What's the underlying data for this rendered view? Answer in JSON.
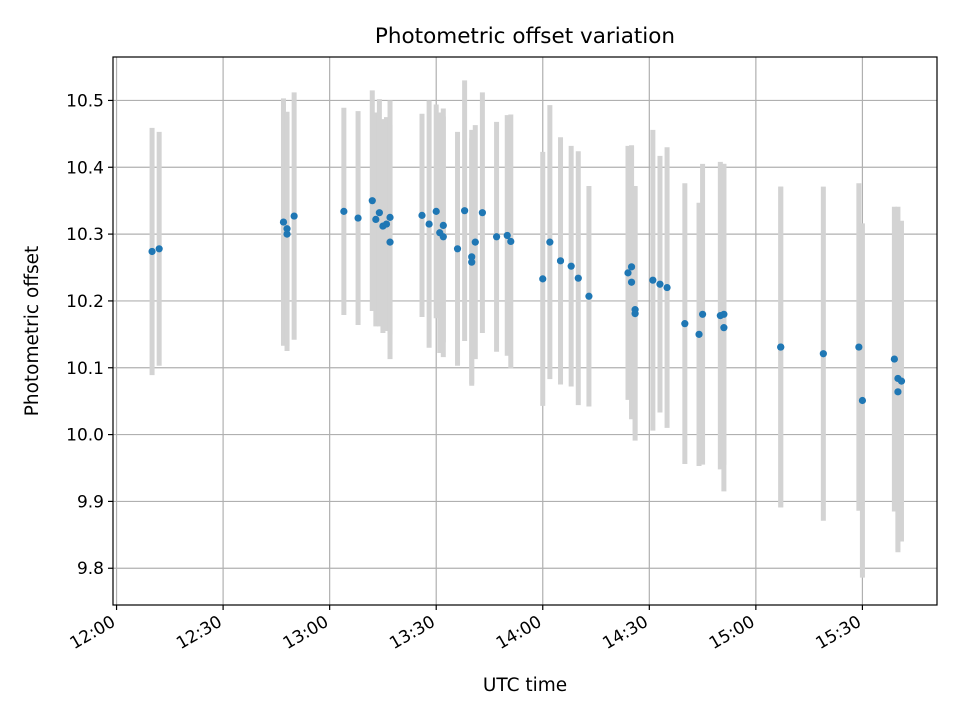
{
  "chart_data": {
    "type": "scatter",
    "title": "Photometric offset variation",
    "xlabel": "UTC time",
    "ylabel": "Photometric offset",
    "x_ticks": [
      "12:00",
      "12:30",
      "13:00",
      "13:30",
      "14:00",
      "14:30",
      "15:00",
      "15:30"
    ],
    "y_ticks": [
      "9.8",
      "9.9",
      "10.0",
      "10.1",
      "10.2",
      "10.3",
      "10.4",
      "10.5"
    ],
    "xlim": [
      "11:59",
      "15:51"
    ],
    "ylim": [
      9.745,
      10.565
    ],
    "grid": true,
    "point_color": "#1f77b4",
    "errorbar_color": "#d3d3d3",
    "series": [
      {
        "x": [
          "12:10",
          "12:12",
          "12:47",
          "12:48",
          "12:48",
          "12:50",
          "13:04",
          "13:08",
          "13:12",
          "13:13",
          "13:14",
          "13:15",
          "13:16",
          "13:17",
          "13:17",
          "13:26",
          "13:28",
          "13:30",
          "13:31",
          "13:32",
          "13:32",
          "13:36",
          "13:38",
          "13:40",
          "13:40",
          "13:41",
          "13:43",
          "13:47",
          "13:50",
          "13:51",
          "14:00",
          "14:02",
          "14:05",
          "14:08",
          "14:10",
          "14:13",
          "14:24",
          "14:25",
          "14:25",
          "14:26",
          "14:26",
          "14:31",
          "14:33",
          "14:35",
          "14:40",
          "14:44",
          "14:45",
          "14:50",
          "14:51",
          "14:51",
          "15:07",
          "15:07",
          "15:19",
          "15:29",
          "15:30",
          "15:39",
          "15:40",
          "15:40",
          "15:41"
        ],
        "y": [
          10.274,
          10.278,
          10.318,
          10.3,
          10.308,
          10.327,
          10.334,
          10.324,
          10.35,
          10.322,
          10.332,
          10.312,
          10.315,
          10.288,
          10.325,
          10.328,
          10.315,
          10.334,
          10.302,
          10.313,
          10.296,
          10.278,
          10.335,
          10.258,
          10.266,
          10.288,
          10.332,
          10.296,
          10.298,
          10.289,
          10.233,
          10.288,
          10.26,
          10.252,
          10.234,
          10.207,
          10.242,
          10.251,
          10.228,
          10.187,
          10.181,
          10.231,
          10.225,
          10.22,
          10.166,
          10.15,
          10.18,
          10.178,
          10.18,
          10.16,
          10.131,
          10.131,
          10.121,
          10.131,
          10.051,
          10.113,
          10.084,
          10.064,
          10.08
        ],
        "error": [
          0.185,
          0.175,
          0.185,
          0.175,
          0.175,
          0.185,
          0.155,
          0.16,
          0.165,
          0.16,
          0.17,
          0.16,
          0.16,
          0.175,
          0.175,
          0.152,
          0.185,
          0.16,
          0.18,
          0.175,
          0.18,
          0.175,
          0.195,
          0.185,
          0.19,
          0.175,
          0.18,
          0.172,
          0.18,
          0.19,
          0.19,
          0.205,
          0.185,
          0.18,
          0.19,
          0.165,
          0.19,
          0.18,
          0.205,
          0.185,
          0.19,
          0.225,
          0.192,
          0.21,
          0.21,
          0.197,
          0.225,
          0.23,
          0.225,
          0.245,
          0.24,
          0.24,
          0.25,
          0.245,
          0.265,
          0.228,
          0.257,
          0.24,
          0.24
        ]
      }
    ]
  }
}
